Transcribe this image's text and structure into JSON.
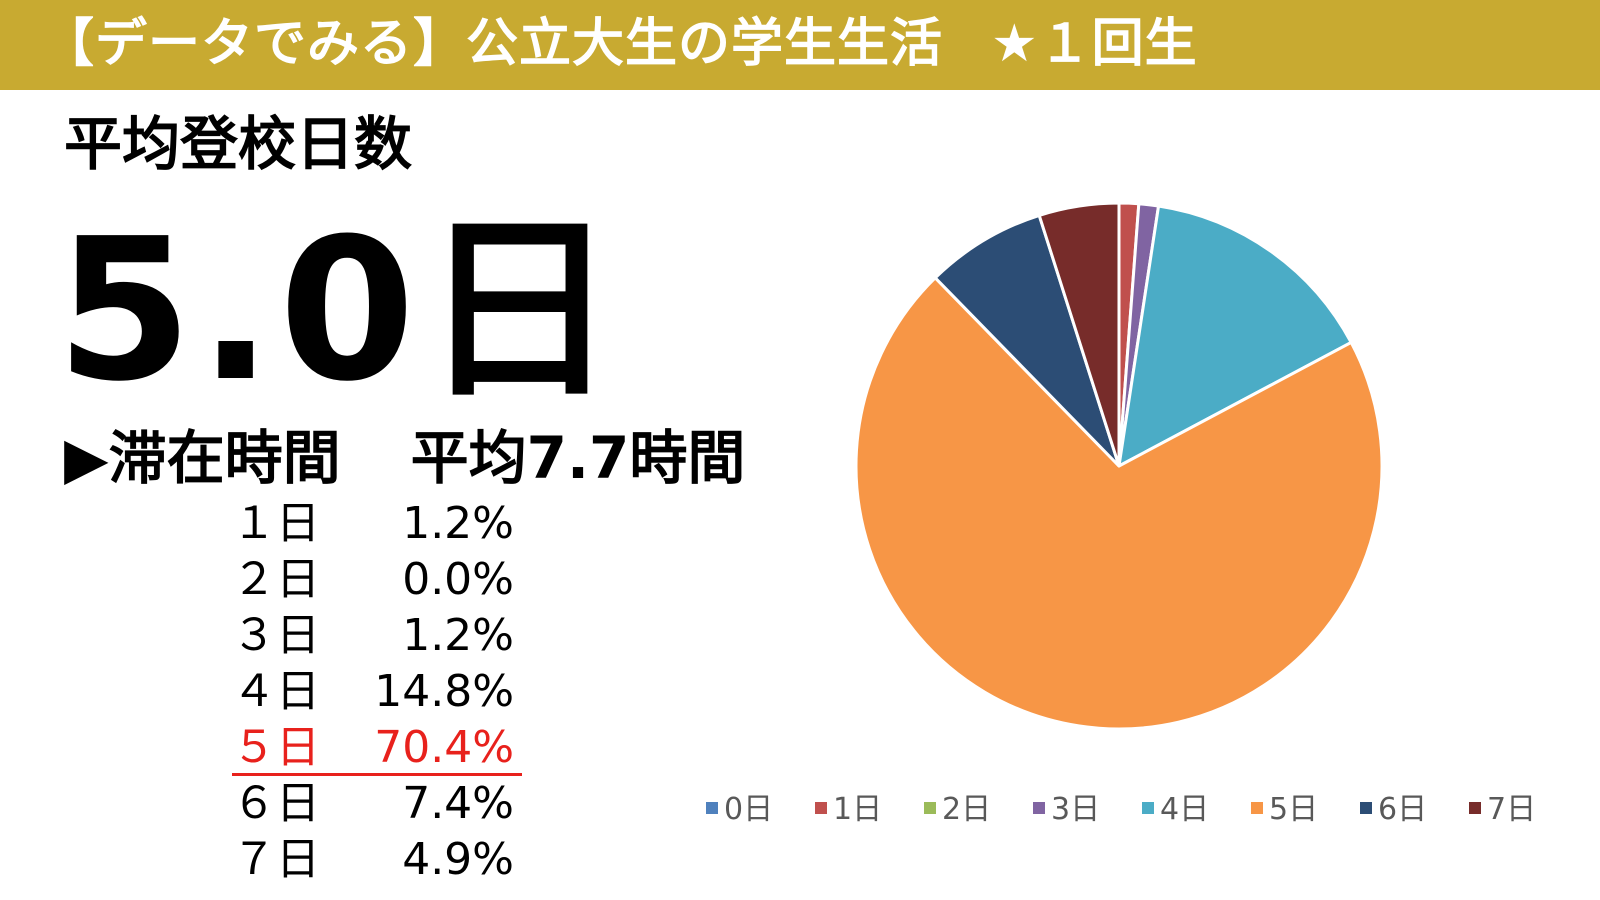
{
  "banner": {
    "title": "【データでみる】公立大生の学生生活",
    "badge": "★１回生",
    "color": "#c8aa31"
  },
  "heading": "平均登校日数",
  "average_days": "5.0日",
  "stay": {
    "label": "▶滞在時間",
    "value": "平均7.7時間"
  },
  "breakdown": [
    {
      "day": "１日",
      "pct": "1.2%"
    },
    {
      "day": "２日",
      "pct": "0.0%"
    },
    {
      "day": "３日",
      "pct": "1.2%"
    },
    {
      "day": "４日",
      "pct": "14.8%"
    },
    {
      "day": "５日",
      "pct": "70.4%",
      "highlight": true
    },
    {
      "day": "６日",
      "pct": "7.4%"
    },
    {
      "day": "７日",
      "pct": "4.9%"
    }
  ],
  "highlight_color": "#e8211c",
  "chart_data": {
    "type": "pie",
    "categories": [
      "0日",
      "1日",
      "2日",
      "3日",
      "4日",
      "5日",
      "6日",
      "7日"
    ],
    "values": [
      0.0,
      1.2,
      0.0,
      1.2,
      14.8,
      70.4,
      7.4,
      4.9
    ],
    "colors": [
      "#4f81bd",
      "#c0504d",
      "#9bbb59",
      "#8064a2",
      "#4bacc6",
      "#f79646",
      "#2c4d75",
      "#772c2a"
    ],
    "legend_position": "bottom"
  }
}
